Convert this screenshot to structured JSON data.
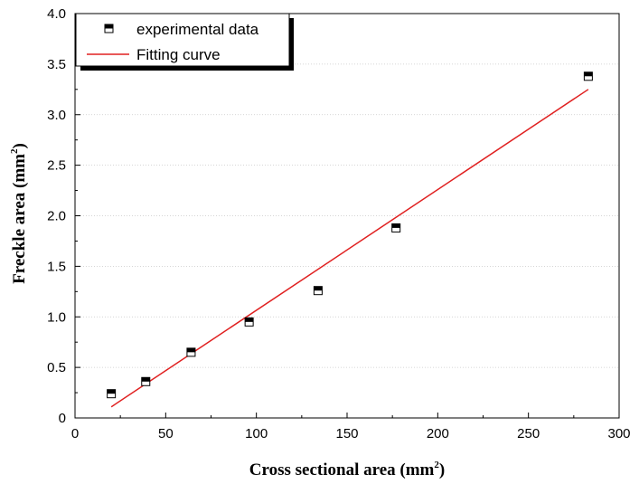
{
  "chart_data": {
    "type": "scatter",
    "xlabel": "Cross sectional area (mm",
    "xlabel_sup": "2",
    "xlabel_end": ")",
    "ylabel": "Freckle area (mm",
    "ylabel_sup": "2",
    "ylabel_end": ")",
    "xlim": [
      0,
      300
    ],
    "ylim": [
      0,
      4.0
    ],
    "x_ticks": [
      0,
      50,
      100,
      150,
      200,
      250,
      300
    ],
    "x_tick_labels": [
      "0",
      "50",
      "100",
      "150",
      "200",
      "250",
      "300"
    ],
    "y_ticks": [
      0,
      0.5,
      1.0,
      1.5,
      2.0,
      2.5,
      3.0,
      3.5,
      4.0
    ],
    "y_tick_labels": [
      "0",
      "0.5",
      "1.0",
      "1.5",
      "2.0",
      "2.5",
      "3.0",
      "3.5",
      "4.0"
    ],
    "grid": "horizontal dotted",
    "legend_position": "top-left",
    "series": [
      {
        "name": "experimental data",
        "kind": "scatter",
        "marker": "half-filled-square",
        "x": [
          20,
          39,
          64,
          96,
          134,
          177,
          283
        ],
        "y": [
          0.24,
          0.36,
          0.65,
          0.95,
          1.26,
          1.88,
          3.38
        ]
      },
      {
        "name": "Fitting curve",
        "kind": "line",
        "color": "#e02020",
        "x": [
          20,
          283
        ],
        "y": [
          0.11,
          3.25
        ]
      }
    ]
  }
}
